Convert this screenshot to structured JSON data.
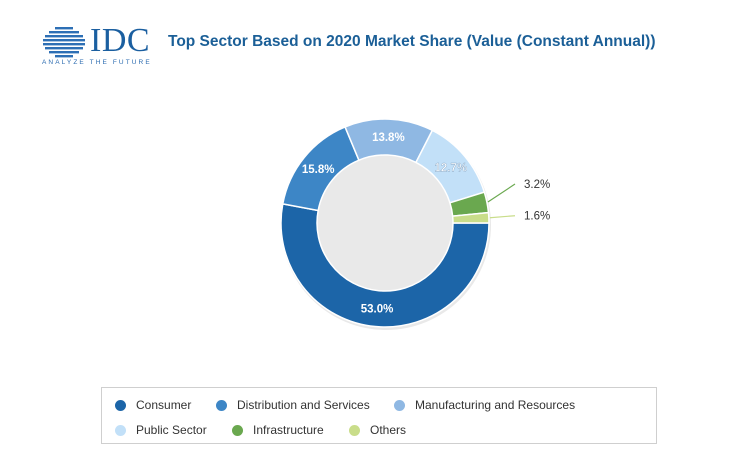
{
  "logo": {
    "wordmark": "IDC",
    "tagline": "ANALYZE THE FUTURE"
  },
  "title": "Top Sector Based on 2020 Market Share (Value (Constant Annual))",
  "chart_data": {
    "type": "pie",
    "subtype": "donut",
    "title": "Top Sector Based on 2020 Market Share (Value (Constant Annual))",
    "categories": [
      "Consumer",
      "Distribution and Services",
      "Manufacturing and Resources",
      "Public Sector",
      "Infrastructure",
      "Others"
    ],
    "values": [
      53.0,
      15.8,
      13.8,
      12.7,
      3.2,
      1.6
    ],
    "labels": [
      "53.0%",
      "15.8%",
      "13.8%",
      "12.7%",
      "3.2%",
      "1.6%"
    ],
    "colors": [
      "#1c65a8",
      "#3d86c6",
      "#8fb8e3",
      "#c2e0f8",
      "#6aa84f",
      "#c9dd8a"
    ],
    "legend_position": "bottom"
  },
  "legend": {
    "items": [
      {
        "label": "Consumer",
        "color": "#1c65a8"
      },
      {
        "label": "Distribution and Services",
        "color": "#3d86c6"
      },
      {
        "label": "Manufacturing and Resources",
        "color": "#8fb8e3"
      },
      {
        "label": "Public Sector",
        "color": "#c2e0f8"
      },
      {
        "label": "Infrastructure",
        "color": "#6aa84f"
      },
      {
        "label": "Others",
        "color": "#c9dd8a"
      }
    ]
  }
}
